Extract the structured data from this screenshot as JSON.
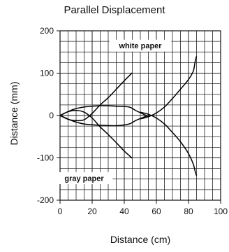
{
  "chart_data": {
    "type": "line",
    "title": "Parallel Displacement",
    "xlabel": "Distance (cm)",
    "ylabel": "Distance (mm)",
    "xlim": [
      0,
      100
    ],
    "ylim": [
      -200,
      200
    ],
    "xticks": [
      0,
      20,
      40,
      60,
      80,
      100
    ],
    "yticks": [
      -200,
      -100,
      0,
      100,
      200
    ],
    "grid": true,
    "annotations": [
      {
        "text": "white paper",
        "x": 50,
        "y": 165
      },
      {
        "text": "gray paper",
        "x": 15,
        "y": -148
      }
    ],
    "series": [
      {
        "x": [
          0,
          5,
          10,
          15,
          20,
          25,
          30,
          35,
          40,
          45
        ],
        "y": [
          0,
          -9,
          -12,
          -10,
          5,
          25,
          42,
          62,
          82,
          101
        ]
      },
      {
        "x": [
          0,
          5,
          10,
          15,
          20,
          25,
          30,
          35,
          40,
          45
        ],
        "y": [
          0,
          9,
          12,
          8,
          -6,
          -27,
          -45,
          -64,
          -84,
          -101
        ]
      },
      {
        "x": [
          0,
          8,
          15,
          25,
          35,
          43,
          47,
          52,
          55
        ],
        "y": [
          0,
          14,
          20,
          23,
          22,
          20,
          12,
          3,
          -2
        ]
      },
      {
        "x": [
          0,
          8,
          15,
          25,
          35,
          43,
          47,
          52,
          55
        ],
        "y": [
          0,
          -13,
          -20,
          -23,
          -24,
          -20,
          -12,
          -4,
          0
        ]
      },
      {
        "x": [
          50,
          55,
          60,
          65,
          70,
          75,
          80,
          83,
          84,
          85
        ],
        "y": [
          -8,
          -3,
          6,
          20,
          40,
          62,
          85,
          105,
          125,
          140
        ]
      },
      {
        "x": [
          50,
          55,
          60,
          65,
          70,
          75,
          80,
          83,
          84,
          85
        ],
        "y": [
          8,
          3,
          -6,
          -20,
          -40,
          -62,
          -90,
          -115,
          -130,
          -142
        ]
      }
    ]
  }
}
